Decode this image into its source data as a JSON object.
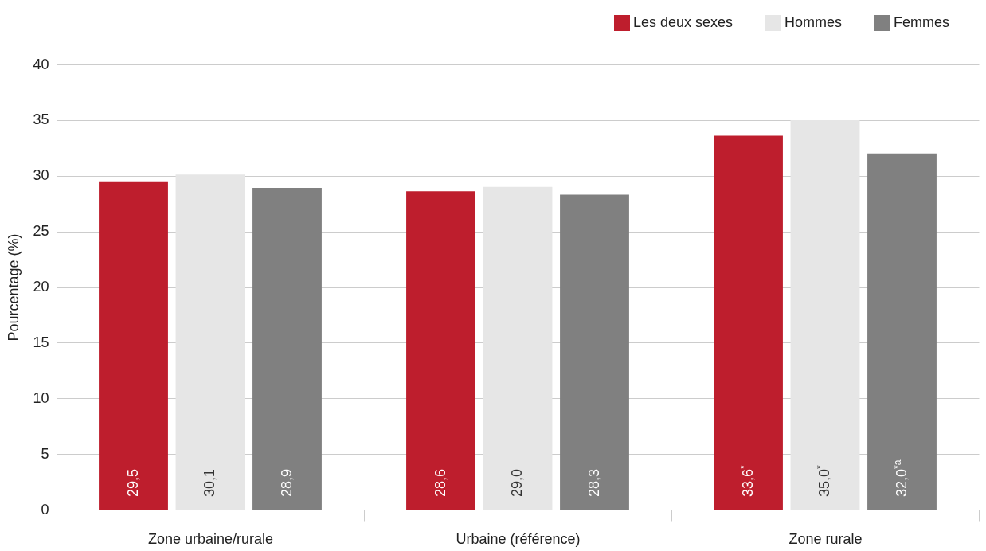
{
  "chart_data": {
    "type": "bar",
    "ylabel": "Pourcentage (%)",
    "categories": [
      "Zone urbaine/rurale",
      "Urbaine (référence)",
      "Zone rurale"
    ],
    "series": [
      {
        "name": "Les deux sexes",
        "color": "#be1e2d",
        "values": [
          29.5,
          28.6,
          33.6
        ],
        "value_labels": [
          "29,5",
          "28,6",
          "33,6$^{*}$"
        ]
      },
      {
        "name": "Hommes",
        "color": "#e6e6e6",
        "values": [
          30.1,
          29.0,
          35.0
        ],
        "value_labels": [
          "30,1",
          "29,0",
          "35,0$^{*}$"
        ]
      },
      {
        "name": "Femmes",
        "color": "#808080",
        "values": [
          28.9,
          28.3,
          32.0
        ],
        "value_labels": [
          "28,9",
          "28,3",
          "32,0$^{*a}$"
        ]
      }
    ],
    "ylim": [
      0,
      40
    ],
    "yticks": [
      0,
      5,
      10,
      15,
      20,
      25,
      30,
      35,
      40
    ],
    "grid": "y",
    "legend": "top right"
  }
}
